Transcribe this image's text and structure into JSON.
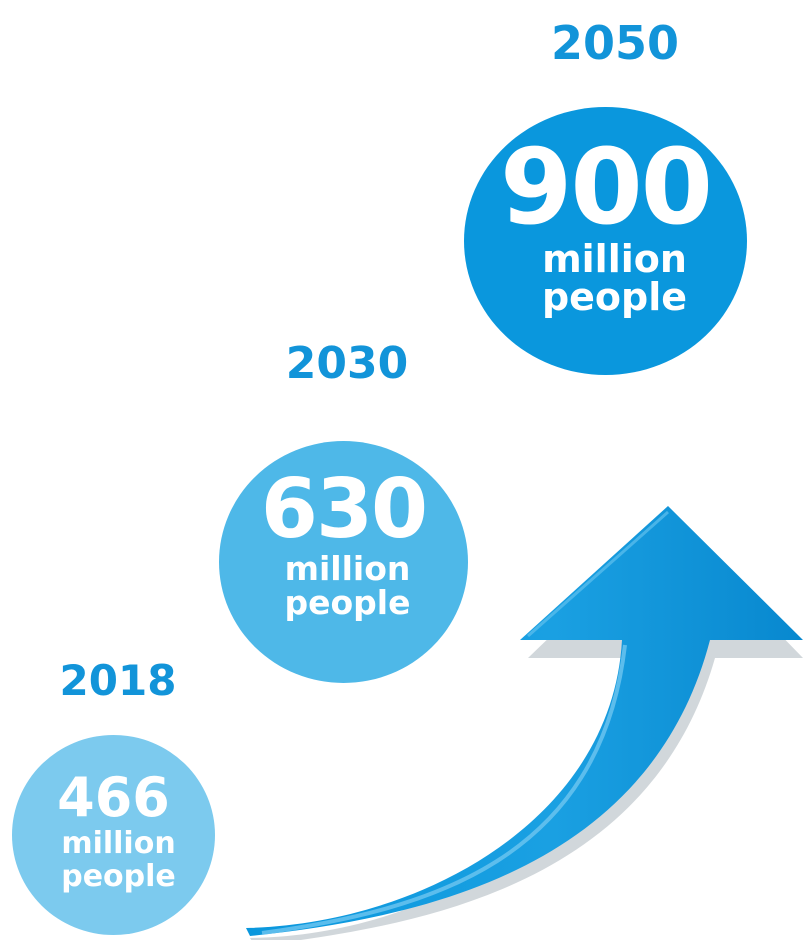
{
  "milestones": [
    {
      "year": "2018",
      "value": "466",
      "unit_line1": "million",
      "unit_line2": "people"
    },
    {
      "year": "2030",
      "value": "630",
      "unit_line1": "million",
      "unit_line2": "people"
    },
    {
      "year": "2050",
      "value": "900",
      "unit_line1": "million",
      "unit_line2": "people"
    }
  ],
  "colors": {
    "year_text": "#1294d9",
    "circle_2018": "#7ccaee",
    "circle_2030": "#4eb8e8",
    "circle_2050": "#0a97dd",
    "arrow": "#0a97dd"
  },
  "icons": {
    "growth_arrow": "curved-up-arrow-icon"
  }
}
